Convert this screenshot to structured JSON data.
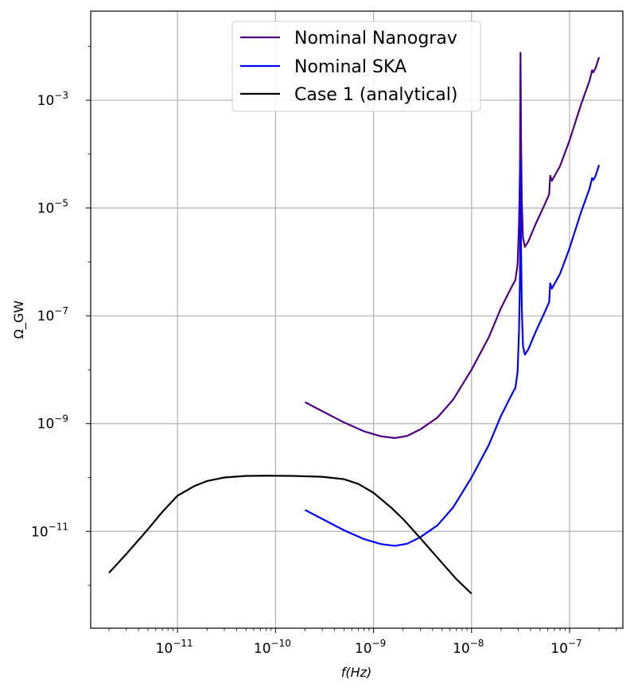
{
  "chart_data": {
    "type": "line",
    "title": "",
    "xlabel": "f(Hz)",
    "ylabel": "Ω_GW",
    "x_scale": "log",
    "y_scale": "log",
    "xlim": [
      1.3e-12,
      3.5e-07
    ],
    "ylim": [
      1.6e-13,
      0.045
    ],
    "grid": true,
    "legend_position": "upper center",
    "x_ticks": [
      {
        "base": "10",
        "exp": "−11",
        "value": 1e-11
      },
      {
        "base": "10",
        "exp": "−10",
        "value": 1e-10
      },
      {
        "base": "10",
        "exp": "−9",
        "value": 1e-09
      },
      {
        "base": "10",
        "exp": "−8",
        "value": 1e-08
      },
      {
        "base": "10",
        "exp": "−7",
        "value": 1e-07
      }
    ],
    "y_ticks": [
      {
        "base": "10",
        "exp": "−3",
        "value": 0.001
      },
      {
        "base": "10",
        "exp": "−5",
        "value": 1e-05
      },
      {
        "base": "10",
        "exp": "−7",
        "value": 1e-07
      },
      {
        "base": "10",
        "exp": "−9",
        "value": 1e-09
      },
      {
        "base": "10",
        "exp": "−11",
        "value": 1e-11
      }
    ],
    "series": [
      {
        "name": "Nominal Nanograv",
        "color": "#4b0082",
        "points": [
          [
            2e-10,
            2.5e-09
          ],
          [
            3e-10,
            1.7e-09
          ],
          [
            5e-10,
            1.05e-09
          ],
          [
            8e-10,
            7.2e-10
          ],
          [
            1.2e-09,
            5.8e-10
          ],
          [
            1.65e-09,
            5.4e-10
          ],
          [
            2.2e-09,
            5.9e-10
          ],
          [
            3e-09,
            7.8e-10
          ],
          [
            4.5e-09,
            1.3e-09
          ],
          [
            6.5e-09,
            2.8e-09
          ],
          [
            1e-08,
            1e-08
          ],
          [
            1.5e-08,
            4e-08
          ],
          [
            2e-08,
            1.4e-07
          ],
          [
            2.6e-08,
            3.6e-07
          ],
          [
            2.8e-08,
            4.6e-07
          ],
          [
            2.95e-08,
            9e-07
          ],
          [
            3.05e-08,
            5e-06
          ],
          [
            3.12e-08,
            5e-05
          ],
          [
            3.16e-08,
            0.0076
          ],
          [
            3.2e-08,
            0.0002
          ],
          [
            3.26e-08,
            1.3e-05
          ],
          [
            3.35e-08,
            2.8e-06
          ],
          [
            3.5e-08,
            1.9e-06
          ],
          [
            3.8e-08,
            2.4e-06
          ],
          [
            4.5e-08,
            5e-06
          ],
          [
            5.5e-08,
            1.1e-05
          ],
          [
            6.2e-08,
            1.8e-05
          ],
          [
            6.35e-08,
            4e-05
          ],
          [
            6.6e-08,
            3.2e-05
          ],
          [
            8e-08,
            6e-05
          ],
          [
            1e-07,
            0.00018
          ],
          [
            1.3e-07,
            0.0008
          ],
          [
            1.6e-07,
            0.0023
          ],
          [
            1.7e-07,
            0.0036
          ],
          [
            1.75e-07,
            0.0033
          ],
          [
            1.85e-07,
            0.004
          ],
          [
            2e-07,
            0.0063
          ]
        ]
      },
      {
        "name": "Nominal SKA",
        "color": "#0000ff",
        "points": [
          [
            2e-10,
            2.5e-11
          ],
          [
            3e-10,
            1.7e-11
          ],
          [
            5e-10,
            1.05e-11
          ],
          [
            8e-10,
            7.2e-12
          ],
          [
            1.2e-09,
            5.8e-12
          ],
          [
            1.65e-09,
            5.4e-12
          ],
          [
            2.2e-09,
            5.9e-12
          ],
          [
            3e-09,
            7.8e-12
          ],
          [
            4.5e-09,
            1.3e-11
          ],
          [
            6.5e-09,
            2.8e-11
          ],
          [
            1e-08,
            1e-10
          ],
          [
            1.5e-08,
            4e-10
          ],
          [
            2e-08,
            1.4e-09
          ],
          [
            2.6e-08,
            3.6e-09
          ],
          [
            2.8e-08,
            4.6e-09
          ],
          [
            2.95e-08,
            9e-09
          ],
          [
            3.05e-08,
            5e-08
          ],
          [
            3.12e-08,
            5e-07
          ],
          [
            3.16e-08,
            7.6e-05
          ],
          [
            3.2e-08,
            2e-06
          ],
          [
            3.26e-08,
            1.3e-07
          ],
          [
            3.35e-08,
            2.8e-08
          ],
          [
            3.5e-08,
            1.9e-08
          ],
          [
            3.8e-08,
            2.4e-08
          ],
          [
            4.5e-08,
            5e-08
          ],
          [
            5.5e-08,
            1.1e-07
          ],
          [
            6.2e-08,
            1.8e-07
          ],
          [
            6.35e-08,
            4e-07
          ],
          [
            6.6e-08,
            3.2e-07
          ],
          [
            8e-08,
            6e-07
          ],
          [
            1e-07,
            1.8e-06
          ],
          [
            1.3e-07,
            8e-06
          ],
          [
            1.6e-07,
            2.3e-05
          ],
          [
            1.7e-07,
            3.6e-05
          ],
          [
            1.75e-07,
            3.3e-05
          ],
          [
            1.85e-07,
            4e-05
          ],
          [
            2e-07,
            6.3e-05
          ]
        ]
      },
      {
        "name": "Case 1 (analytical)",
        "color": "#000000",
        "points": [
          [
            2e-12,
            1.7e-12
          ],
          [
            3e-12,
            3.8e-12
          ],
          [
            5e-12,
            1.1e-11
          ],
          [
            7e-12,
            2.3e-11
          ],
          [
            1e-11,
            4.6e-11
          ],
          [
            1.5e-11,
            7e-11
          ],
          [
            2e-11,
            8.6e-11
          ],
          [
            3e-11,
            1e-10
          ],
          [
            5e-11,
            1.07e-10
          ],
          [
            8e-11,
            1.08e-10
          ],
          [
            1.5e-10,
            1.07e-10
          ],
          [
            3e-10,
            1.03e-10
          ],
          [
            5e-10,
            9.3e-11
          ],
          [
            7e-10,
            7.6e-11
          ],
          [
            1e-09,
            5.2e-11
          ],
          [
            1.5e-09,
            2.8e-11
          ],
          [
            2e-09,
            1.7e-11
          ],
          [
            3e-09,
            7.5e-12
          ],
          [
            5e-09,
            2.6e-12
          ],
          [
            7e-09,
            1.3e-12
          ],
          [
            1e-08,
            7e-13
          ]
        ]
      }
    ]
  }
}
